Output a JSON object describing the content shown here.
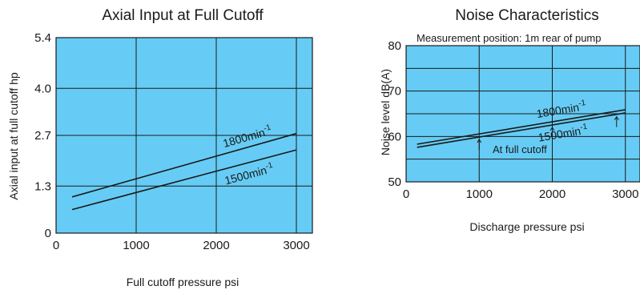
{
  "colors": {
    "plot_bg": "#66ccf5",
    "line": "#1a1a1a",
    "grid": "#1a1a1a"
  },
  "chart_data": [
    {
      "type": "line",
      "title": "Axial Input at Full Cutoff",
      "xlabel": "Full cutoff pressure psi",
      "ylabel": "Axial input at full cutoff hp",
      "xlim": [
        0,
        3200
      ],
      "ylim": [
        0,
        5.4
      ],
      "xticks": [
        0,
        1000,
        2000,
        3000
      ],
      "xtick_labels": [
        "0",
        "1000",
        "2000",
        "3000"
      ],
      "yticks": [
        0,
        1.3,
        2.7,
        4.0,
        5.4
      ],
      "ytick_labels": [
        "0",
        "1.3",
        "2.7",
        "4.0",
        "5.4"
      ],
      "grid": true,
      "series": [
        {
          "name": "1800",
          "unit_sup": "-1",
          "unit": "min",
          "x": [
            200,
            3000
          ],
          "y": [
            1.0,
            2.75
          ]
        },
        {
          "name": "1500",
          "unit_sup": "-1",
          "unit": "min",
          "x": [
            200,
            3000
          ],
          "y": [
            0.65,
            2.3
          ]
        }
      ]
    },
    {
      "type": "line",
      "title": "Noise Characteristics",
      "annotation": "Measurement position: 1m rear of pump",
      "note": "At full cutoff",
      "xlabel": "Discharge pressure psi",
      "ylabel": "Noise level dB(A)",
      "xlim": [
        0,
        3200
      ],
      "ylim": [
        50,
        80
      ],
      "xticks": [
        0,
        1000,
        2000,
        3000
      ],
      "xtick_labels": [
        "0",
        "1000",
        "2000",
        "3000"
      ],
      "yticks": [
        50,
        60,
        70,
        80
      ],
      "ytick_labels": [
        "50",
        "60",
        "70",
        "80"
      ],
      "grid": true,
      "series": [
        {
          "name": "1800",
          "unit_sup": "-1",
          "unit": "min",
          "x": [
            150,
            3000
          ],
          "y": [
            58.3,
            65.9
          ]
        },
        {
          "name": "1500",
          "unit_sup": "-1",
          "unit": "min",
          "x": [
            150,
            3000
          ],
          "y": [
            57.6,
            65.2
          ]
        }
      ]
    }
  ]
}
